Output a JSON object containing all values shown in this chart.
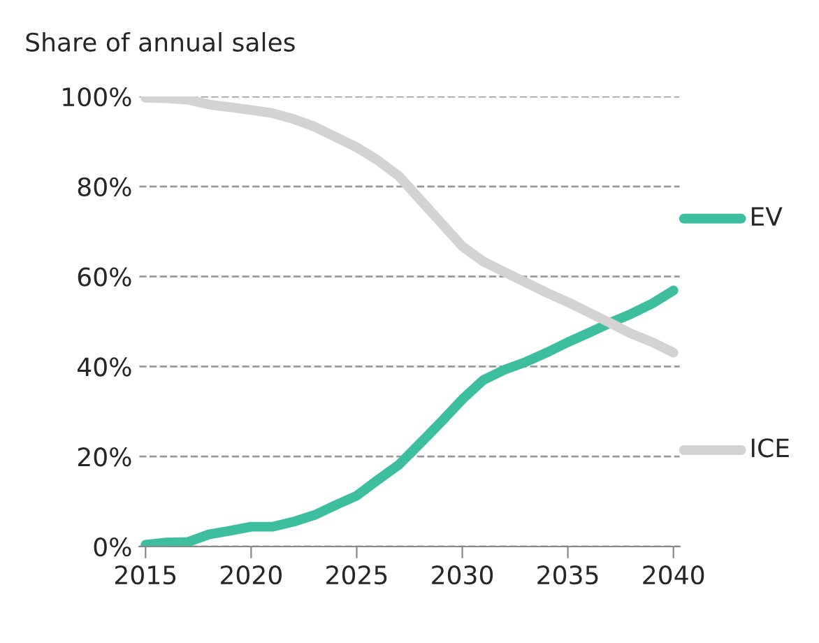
{
  "chart_data": {
    "type": "line",
    "title": "Share of annual sales",
    "x": [
      2015,
      2016,
      2017,
      2018,
      2019,
      2020,
      2021,
      2022,
      2023,
      2024,
      2025,
      2026,
      2027,
      2028,
      2029,
      2030,
      2031,
      2032,
      2033,
      2034,
      2035,
      2036,
      2037,
      2038,
      2039,
      2040
    ],
    "series": [
      {
        "name": "EV",
        "color": "#3dbf9f",
        "values": [
          0.4,
          0.9,
          1,
          2.7,
          3.5,
          4.4,
          4.4,
          5.5,
          7,
          9.2,
          11.3,
          14.8,
          18.2,
          22.9,
          27.7,
          32.7,
          37,
          39.3,
          41,
          43.1,
          45.4,
          47.5,
          49.7,
          51.7,
          54,
          56.9
        ]
      },
      {
        "name": "ICE",
        "color": "#d3d3d3",
        "values": [
          99.7,
          99.6,
          99.3,
          98.2,
          97.6,
          97,
          96.3,
          95,
          93.3,
          91,
          88.7,
          85.8,
          82.3,
          77.1,
          71.9,
          66.7,
          63.3,
          61,
          58.7,
          56.4,
          54.3,
          52,
          49.7,
          47.3,
          45.4,
          43.1
        ]
      }
    ],
    "xlim": [
      2014.7,
      2040.3
    ],
    "xticks": [
      2015,
      2020,
      2025,
      2030,
      2035,
      2040
    ],
    "ylim": [
      0,
      100
    ],
    "yticks": [
      {
        "value": 0,
        "label": "0%"
      },
      {
        "value": 20,
        "label": "20%"
      },
      {
        "value": 40,
        "label": "40%"
      },
      {
        "value": 60,
        "label": "60%"
      },
      {
        "value": 80,
        "label": "80%"
      },
      {
        "value": 100,
        "label": "100%"
      }
    ],
    "grid": "y",
    "legend": "right",
    "marker": "none",
    "line_style": "solid"
  }
}
